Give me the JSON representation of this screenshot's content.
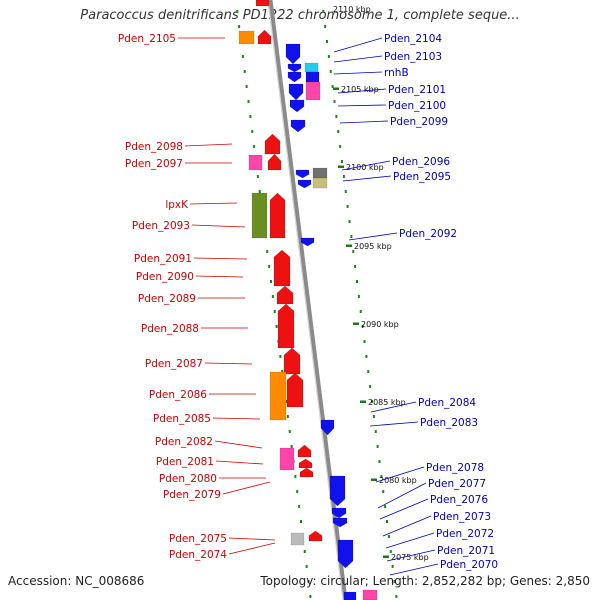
{
  "map": {
    "title": "Paracoccus denitrificans PD1222 chromosome 1, complete seque...",
    "top_fragment": "2110 kbp",
    "accession": "Accession: NC_008686",
    "summary": "Topology: circular; Length: 2,852,282 bp; Genes: 2,850",
    "colors": {
      "red": "#ee1111",
      "blue": "#1111ee",
      "orange": "#ff8c00",
      "pink": "#ff44aa",
      "olive": "#6b8e23",
      "cyan": "#22ccee",
      "grey": "#bbbbbb",
      "khaki": "#c8be78",
      "dimgray": "#707070",
      "dot": "#1a8a1a",
      "left_label": "#cc0000",
      "right_label": "#0000bb"
    },
    "scale_marks": [
      {
        "label": "2105 kbp"
      },
      {
        "label": "2100 kbp"
      },
      {
        "label": "2095 kbp"
      },
      {
        "label": "2090 kbp"
      },
      {
        "label": "2085 kbp"
      },
      {
        "label": "2080 kbp"
      },
      {
        "label": "2075 kbp"
      }
    ],
    "left_labels": [
      {
        "text": "Pden_2105"
      },
      {
        "text": "Pden_2098"
      },
      {
        "text": "Pden_2097"
      },
      {
        "text": "lpxK"
      },
      {
        "text": "Pden_2093"
      },
      {
        "text": "Pden_2091"
      },
      {
        "text": "Pden_2090"
      },
      {
        "text": "Pden_2089"
      },
      {
        "text": "Pden_2088"
      },
      {
        "text": "Pden_2087"
      },
      {
        "text": "Pden_2086"
      },
      {
        "text": "Pden_2085"
      },
      {
        "text": "Pden_2082"
      },
      {
        "text": "Pden_2081"
      },
      {
        "text": "Pden_2080"
      },
      {
        "text": "Pden_2079"
      },
      {
        "text": "Pden_2075"
      },
      {
        "text": "Pden_2074"
      }
    ],
    "right_labels": [
      {
        "text": "Pden_2104"
      },
      {
        "text": "Pden_2103"
      },
      {
        "text": "rnhB"
      },
      {
        "text": "Pden_2101"
      },
      {
        "text": "Pden_2100"
      },
      {
        "text": "Pden_2099"
      },
      {
        "text": "Pden_2096"
      },
      {
        "text": "Pden_2095"
      },
      {
        "text": "Pden_2092"
      },
      {
        "text": "Pden_2084"
      },
      {
        "text": "Pden_2083"
      },
      {
        "text": "Pden_2078"
      },
      {
        "text": "Pden_2077"
      },
      {
        "text": "Pden_2076"
      },
      {
        "text": "Pden_2073"
      },
      {
        "text": "Pden_2072"
      },
      {
        "text": "Pden_2071"
      },
      {
        "text": "Pden_2070"
      }
    ]
  }
}
